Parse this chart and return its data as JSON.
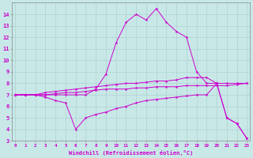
{
  "background_color": "#c8e8e8",
  "line_color": "#cc00cc",
  "x_hours": [
    0,
    1,
    2,
    3,
    4,
    5,
    6,
    7,
    8,
    9,
    10,
    11,
    12,
    13,
    14,
    15,
    16,
    17,
    18,
    19,
    20,
    21,
    22,
    23
  ],
  "series1": [
    7.0,
    7.0,
    7.0,
    7.0,
    7.0,
    7.0,
    7.0,
    7.0,
    7.5,
    8.8,
    11.5,
    13.3,
    14.0,
    13.5,
    14.5,
    13.3,
    12.5,
    12.0,
    9.0,
    8.0,
    8.0,
    5.0,
    4.5,
    3.2
  ],
  "series2": [
    7.0,
    7.0,
    7.0,
    7.2,
    7.3,
    7.4,
    7.5,
    7.6,
    7.7,
    7.8,
    7.9,
    8.0,
    8.0,
    8.1,
    8.2,
    8.2,
    8.3,
    8.5,
    8.5,
    8.5,
    8.0,
    8.0,
    8.0,
    8.0
  ],
  "series3": [
    7.0,
    7.0,
    7.0,
    7.0,
    7.1,
    7.2,
    7.2,
    7.3,
    7.4,
    7.5,
    7.5,
    7.5,
    7.6,
    7.6,
    7.7,
    7.7,
    7.7,
    7.8,
    7.8,
    7.8,
    7.8,
    7.8,
    7.9,
    8.0
  ],
  "series4": [
    7.0,
    7.0,
    7.0,
    6.8,
    6.5,
    6.3,
    4.0,
    5.0,
    5.3,
    5.5,
    5.8,
    6.0,
    6.3,
    6.5,
    6.6,
    6.7,
    6.8,
    6.9,
    7.0,
    7.0,
    8.0,
    5.0,
    4.5,
    3.2
  ],
  "ylim": [
    3,
    15
  ],
  "xlim": [
    -0.3,
    23.3
  ],
  "yticks": [
    3,
    4,
    5,
    6,
    7,
    8,
    9,
    10,
    11,
    12,
    13,
    14
  ],
  "xticks": [
    0,
    1,
    2,
    3,
    4,
    5,
    6,
    7,
    8,
    9,
    10,
    11,
    12,
    13,
    14,
    15,
    16,
    17,
    18,
    19,
    20,
    21,
    22,
    23
  ],
  "xlabel": "Windchill (Refroidissement éolien,°C)"
}
